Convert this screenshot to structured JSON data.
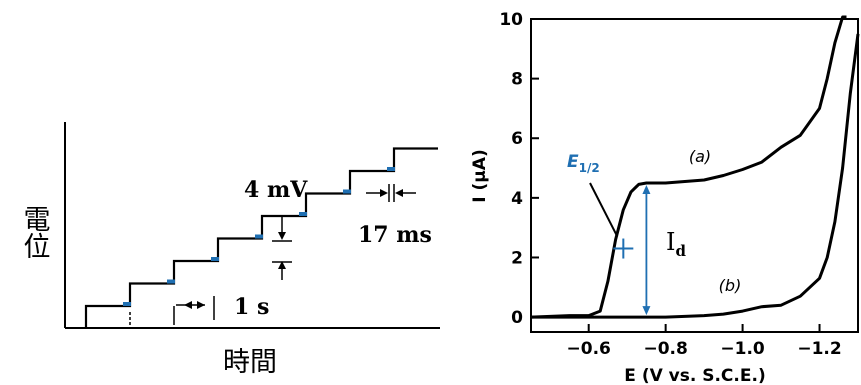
{
  "chart_data": [
    {
      "type": "line",
      "xlabel": "時間",
      "ylabel": "電位",
      "annotations": {
        "step_height": "4 mV",
        "pulse_width": "17 ms",
        "step_period": "1 s"
      },
      "staircase_steps": 8,
      "pulse_color": "#1f6fb2"
    },
    {
      "type": "line",
      "xlabel": "E (V vs. S.C.E.)",
      "ylabel": "I (µA)",
      "xlim": [
        -0.45,
        -1.3
      ],
      "ylim": [
        -0.5,
        10
      ],
      "xticks": [
        -0.6,
        -0.8,
        -1.0,
        -1.2
      ],
      "xtick_labels": [
        "−0.6",
        "−0.8",
        "−1.0",
        "−1.2"
      ],
      "yticks": [
        0,
        2,
        4,
        6,
        8,
        10
      ],
      "ytick_labels": [
        "0",
        "2",
        "4",
        "6",
        "8",
        "10"
      ],
      "series": [
        {
          "name": "(a)",
          "x": [
            -0.45,
            -0.55,
            -0.6,
            -0.63,
            -0.65,
            -0.67,
            -0.69,
            -0.71,
            -0.73,
            -0.75,
            -0.8,
            -0.9,
            -0.95,
            -1.0,
            -1.05,
            -1.1,
            -1.15,
            -1.2,
            -1.22,
            -1.24,
            -1.26,
            -1.27
          ],
          "y": [
            0.0,
            0.05,
            0.05,
            0.2,
            1.2,
            2.6,
            3.6,
            4.2,
            4.45,
            4.5,
            4.5,
            4.6,
            4.75,
            4.95,
            5.2,
            5.7,
            6.1,
            7.0,
            8.0,
            9.2,
            10.3,
            11.0
          ]
        },
        {
          "name": "(b)",
          "x": [
            -0.45,
            -0.6,
            -0.7,
            -0.8,
            -0.9,
            -0.95,
            -1.0,
            -1.05,
            -1.1,
            -1.15,
            -1.2,
            -1.22,
            -1.24,
            -1.26,
            -1.28,
            -1.3
          ],
          "y": [
            0.0,
            0.0,
            0.0,
            0.0,
            0.05,
            0.1,
            0.2,
            0.35,
            0.4,
            0.7,
            1.3,
            2.0,
            3.2,
            5.0,
            7.5,
            9.5
          ]
        }
      ],
      "e_half": {
        "label": "E1/2",
        "x": -0.69,
        "y": 2.3,
        "label_color": "#1f6fb2"
      },
      "id_label": "Id",
      "id_range": [
        0.0,
        4.5
      ],
      "id_x": -0.75,
      "accent": "#1f6fb2"
    }
  ]
}
